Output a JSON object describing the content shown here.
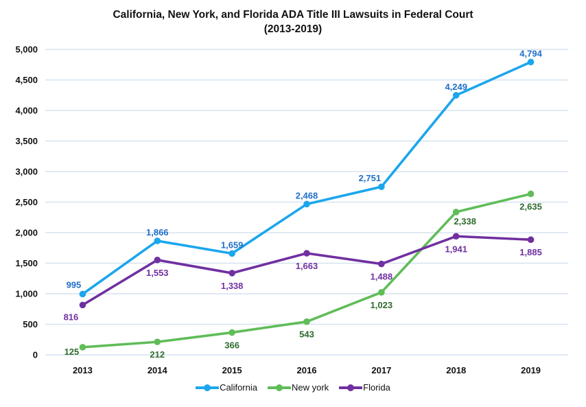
{
  "title": {
    "line1": "California, New York, and Florida ADA Title III Lawsuits in Federal Court",
    "line2": "(2013-2019)"
  },
  "chart_data": {
    "type": "line",
    "categories": [
      "2013",
      "2014",
      "2015",
      "2016",
      "2017",
      "2018",
      "2019"
    ],
    "series": [
      {
        "name": "California",
        "line_color": "#1CA6EC",
        "label_color": "#1F6FC8",
        "values": [
          995,
          1866,
          1659,
          2468,
          2751,
          4249,
          4794
        ],
        "point_labels": [
          "995",
          "1,866",
          "1,659",
          "2,468",
          "2,751",
          "4,249",
          "4,794"
        ],
        "label_position": "above",
        "label_offset_overrides": {
          "0": [
            -13,
            -9
          ],
          "4": [
            -17,
            -8
          ]
        }
      },
      {
        "name": "New york",
        "line_color": "#5FBD58",
        "label_color": "#2E6B2E",
        "values": [
          125,
          212,
          366,
          543,
          1023,
          2338,
          2635
        ],
        "point_labels": [
          "125",
          "212",
          "366",
          "543",
          "1,023",
          "2,338",
          "2,635"
        ],
        "label_position": "below",
        "label_offset_overrides": {
          "0": [
            -16,
            11
          ],
          "5": [
            13,
            18
          ]
        }
      },
      {
        "name": "Florida",
        "line_color": "#7030A0",
        "label_color": "#7030A0",
        "values": [
          816,
          1553,
          1338,
          1663,
          1488,
          1941,
          1885
        ],
        "point_labels": [
          "816",
          "1,553",
          "1,338",
          "1,663",
          "1,488",
          "1,941",
          "1,885"
        ],
        "label_position": "below",
        "label_offset_overrides": {
          "0": [
            -17,
            22
          ]
        }
      }
    ],
    "ylim": [
      0,
      5000
    ],
    "ytick_labels": [
      "0",
      "500",
      "1,000",
      "1,500",
      "2,000",
      "2,500",
      "3,000",
      "3,500",
      "4,000",
      "4,500",
      "5,000"
    ],
    "grid": true,
    "gridline_color": "#D6E2F0",
    "legend_position": "bottom",
    "legend": [
      "California",
      "New york",
      "Florida"
    ]
  }
}
